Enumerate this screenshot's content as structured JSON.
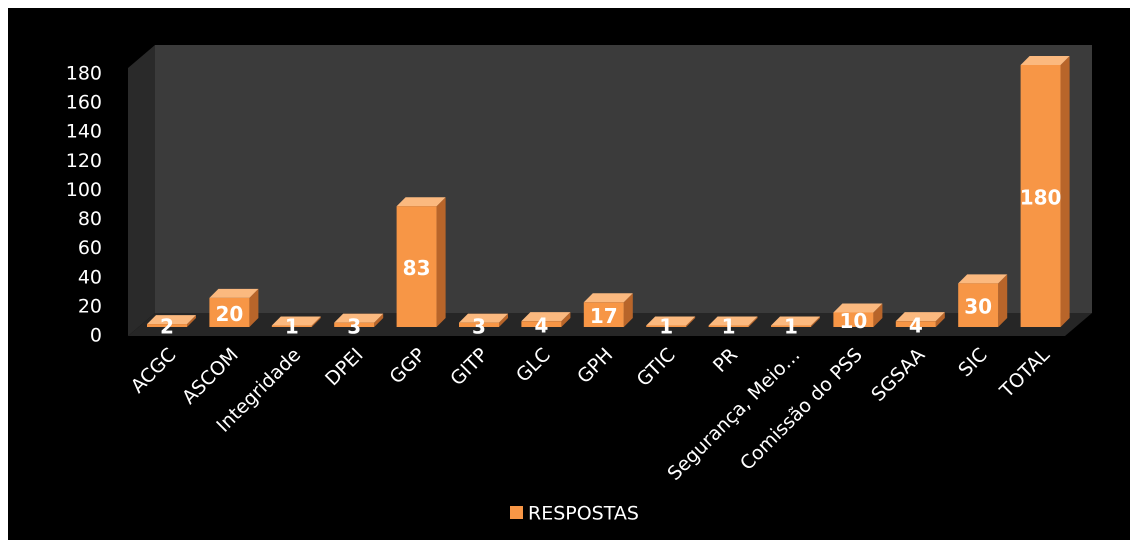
{
  "chart_data": {
    "type": "bar3d",
    "categories": [
      "ACGC",
      "ASCOM",
      "Integridade",
      "DPEI",
      "GGP",
      "GITP",
      "GLC",
      "GPH",
      "GTIC",
      "PR",
      "Segurança, Meio…",
      "Comissão do PSS",
      "SGSAA",
      "SIC",
      "TOTAL"
    ],
    "series": [
      {
        "name": "RESPOSTAS",
        "color": "#f79646",
        "values": [
          2,
          20,
          1,
          3,
          83,
          3,
          4,
          17,
          1,
          1,
          1,
          10,
          4,
          30,
          180
        ]
      }
    ],
    "ylim": [
      0,
      180
    ],
    "yticks": [
      0,
      20,
      40,
      60,
      80,
      100,
      120,
      140,
      160,
      180
    ],
    "legend": "bottom"
  }
}
